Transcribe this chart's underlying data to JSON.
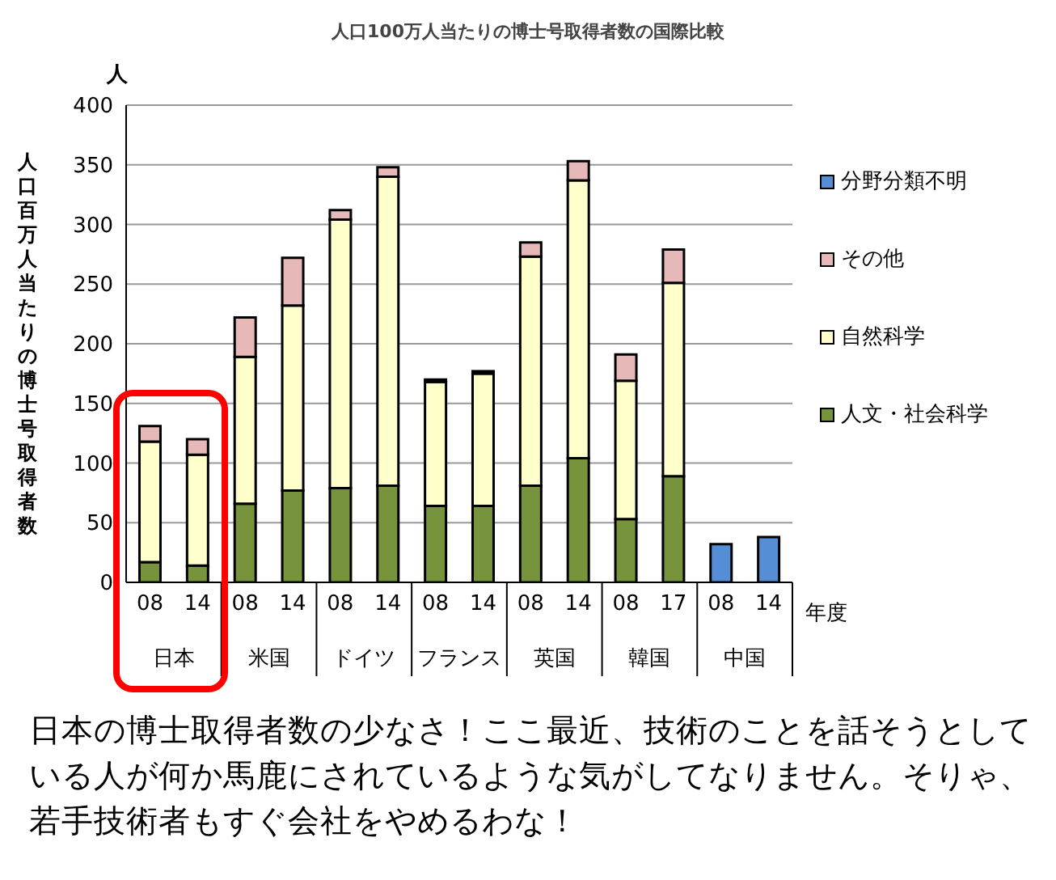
{
  "chart_data": {
    "type": "bar",
    "title": "人口100万人当たりの博士号取得者数の国際比較",
    "ylabel": "人口百万人当たりの博士号取得者数",
    "xlabel": "年度",
    "stacked": true,
    "categories": [
      "08",
      "14",
      "08",
      "14",
      "08",
      "14",
      "08",
      "14",
      "08",
      "14",
      "08",
      "17",
      "08",
      "14"
    ],
    "series": [
      {
        "name": "人文・社会科学",
        "color": "#77933c",
        "values": [
          17,
          14,
          66,
          77,
          79,
          81,
          64,
          64,
          81,
          104,
          53,
          89,
          null,
          null
        ]
      },
      {
        "name": "自然科学",
        "color": "#ffffcc",
        "values": [
          101,
          93,
          123,
          155,
          225,
          259,
          104,
          111,
          192,
          233,
          116,
          162,
          null,
          null
        ]
      },
      {
        "name": "その他",
        "color": "#e6b9b8",
        "values": [
          13,
          13,
          33,
          40,
          8,
          8,
          2,
          2,
          12,
          16,
          22,
          28,
          null,
          null
        ]
      },
      {
        "name": "分野分類不明",
        "color": "#558ed5",
        "values": [
          null,
          null,
          null,
          null,
          null,
          null,
          null,
          null,
          null,
          null,
          null,
          null,
          32,
          38
        ]
      }
    ],
    "ylim": [
      0,
      400
    ],
    "yticks": [
      0,
      50,
      100,
      150,
      200,
      250,
      300,
      350,
      400
    ],
    "grid": "y",
    "legend": "right",
    "annotations": [
      "人",
      "日本",
      "米国",
      "ドイツ",
      "フランス",
      "英国",
      "韓国",
      "中国",
      "日本の博士取得者数の少なさ！ここ最近、技術のことを話そうとしている人が何か馬鹿にされているような気がしてなりません。そりゃ、若手技術者もすぐ会社をやめるわな！"
    ]
  }
}
